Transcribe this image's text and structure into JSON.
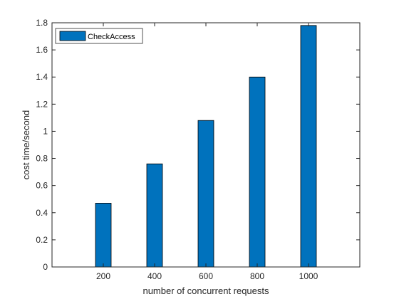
{
  "chart_data": {
    "type": "bar",
    "title": "",
    "xlabel": "number of concurrent requests",
    "ylabel": "cost time/second",
    "categories": [
      "200",
      "400",
      "600",
      "800",
      "1000"
    ],
    "series": [
      {
        "name": "CheckAccess",
        "values": [
          0.47,
          0.76,
          1.08,
          1.4,
          1.78
        ],
        "color": "#0072BD"
      }
    ],
    "xlim": [
      0,
      1200
    ],
    "ylim": [
      0,
      1.8
    ],
    "yticks": [
      0,
      0.2,
      0.4,
      0.6,
      0.8,
      1,
      1.2,
      1.4,
      1.6,
      1.8
    ],
    "ytick_labels": [
      "0",
      "0.2",
      "0.4",
      "0.6",
      "0.8",
      "1",
      "1.2",
      "1.4",
      "1.6",
      "1.8"
    ],
    "grid": false,
    "legend_position": "top-left"
  }
}
